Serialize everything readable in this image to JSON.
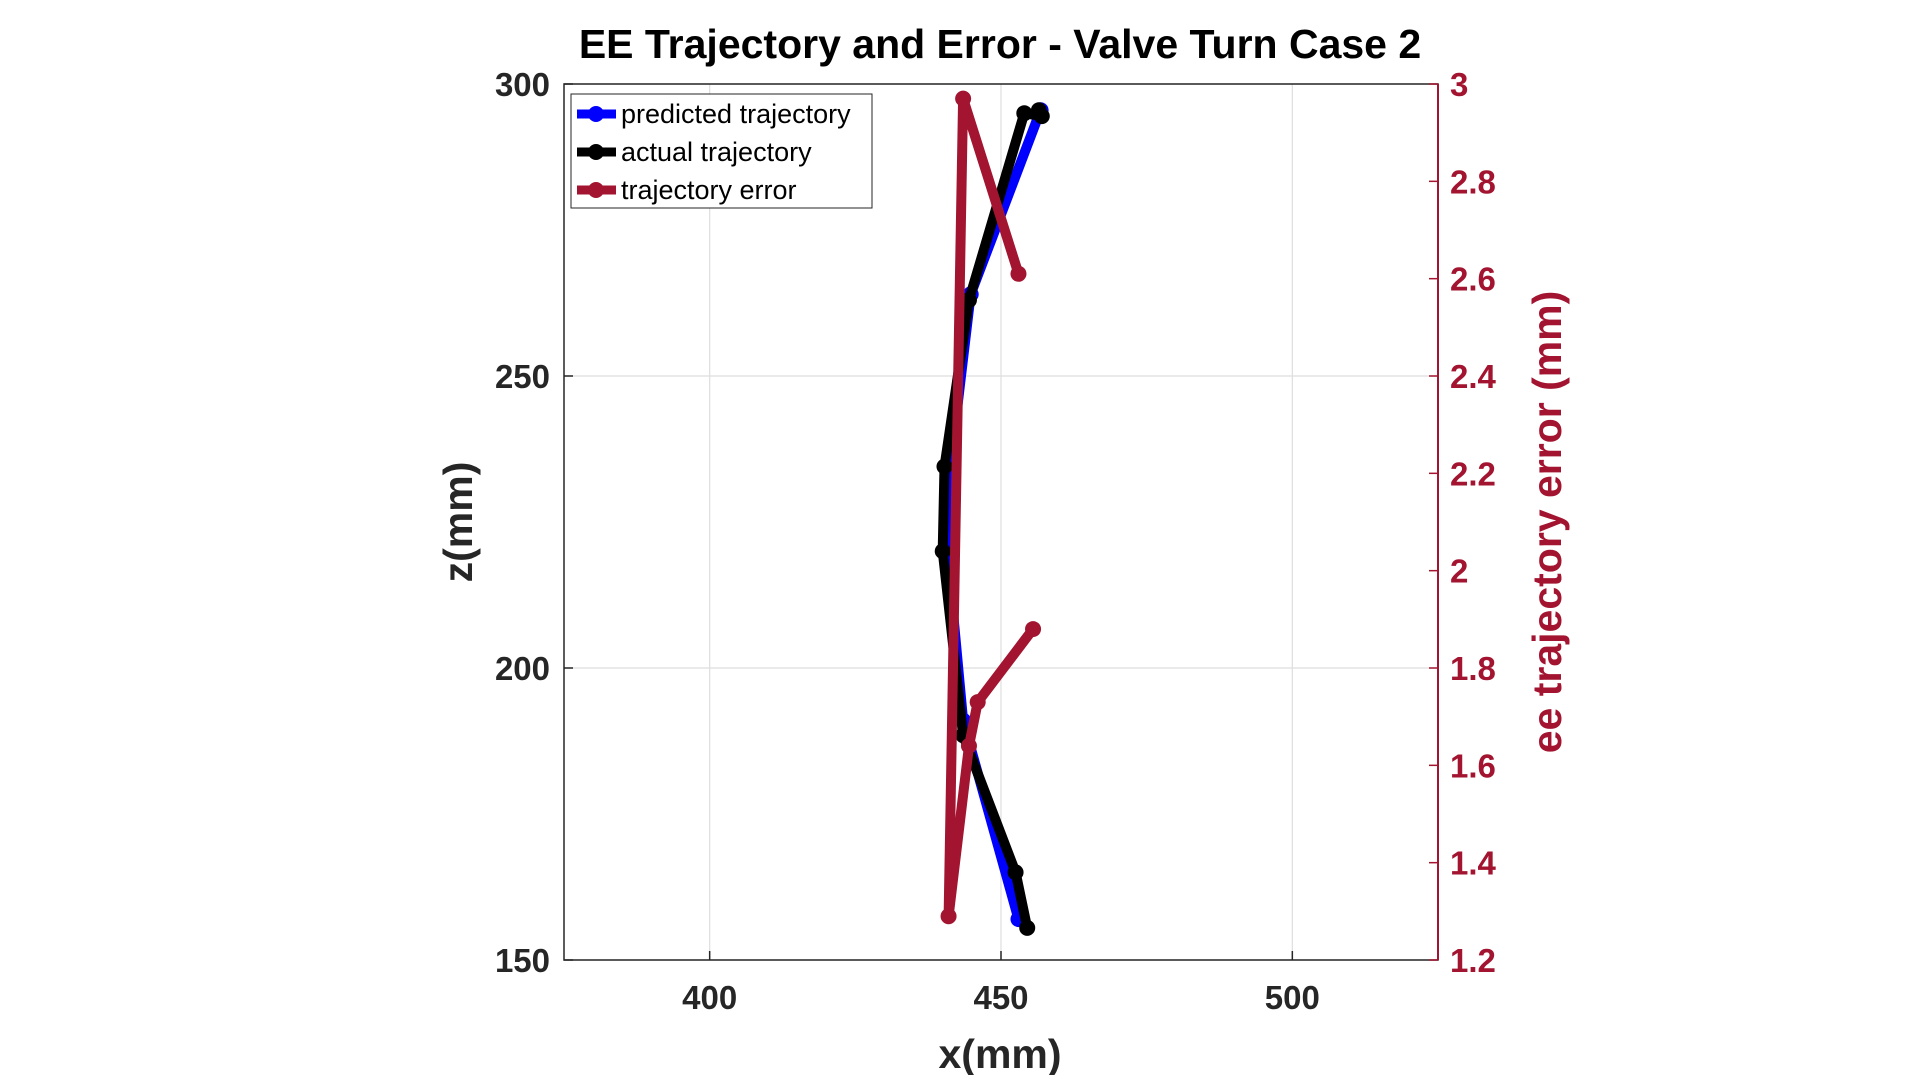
{
  "chart_data": {
    "type": "line",
    "title": "EE Trajectory and Error - Valve Turn Case 2",
    "xlabel": "x(mm)",
    "ylabel": "z(mm)",
    "y2label": "ee trajectory error (mm)",
    "xlim": [
      375,
      525
    ],
    "ylim": [
      150,
      300
    ],
    "y2lim": [
      1.2,
      3.0
    ],
    "xticks": [
      "400",
      "450",
      "500"
    ],
    "yticks": [
      "150",
      "200",
      "250",
      "300"
    ],
    "y2ticks": [
      "1.2",
      "1.4",
      "1.6",
      "1.8",
      "2",
      "2.2",
      "2.4",
      "2.6",
      "2.8",
      "3"
    ],
    "grid": true,
    "legend_position": "top-left",
    "colors": {
      "predicted": "#0000ff",
      "actual": "#000000",
      "error": "#a2142f"
    },
    "series": [
      {
        "name": "predicted trajectory",
        "axis": "left",
        "color": "#0000ff",
        "x": [
          453.0,
          443.5,
          440.8,
          441.3,
          444.8,
          456.8
        ],
        "y": [
          157.0,
          191.0,
          220.0,
          234.5,
          264.0,
          295.5
        ]
      },
      {
        "name": "actual trajectory",
        "axis": "left",
        "color": "#000000",
        "x": [
          454.5,
          452.5,
          443.5,
          440.0,
          440.3,
          444.5,
          454.0,
          457.0,
          456.5
        ],
        "y": [
          155.5,
          165.0,
          188.5,
          220.0,
          234.5,
          263.0,
          295.0,
          294.5,
          295.5
        ]
      },
      {
        "name": "trajectory error",
        "axis": "right",
        "color": "#a2142f",
        "x": [
          455.5,
          446.0,
          444.5,
          441.0,
          443.5,
          453.0
        ],
        "y": [
          1.88,
          1.73,
          1.64,
          1.29,
          2.97,
          2.61
        ]
      }
    ]
  }
}
